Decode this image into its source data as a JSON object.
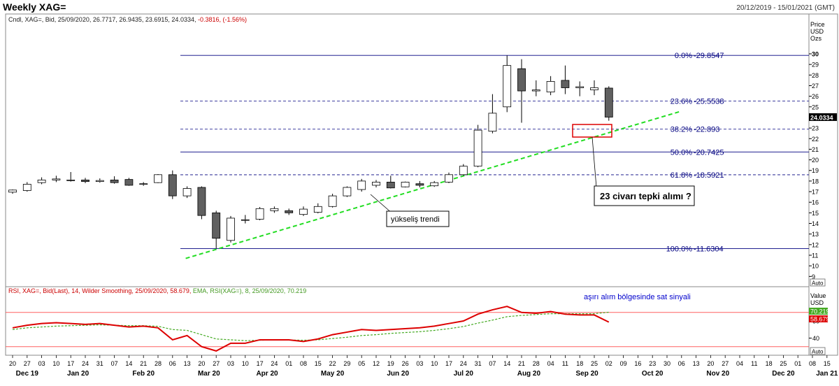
{
  "header": {
    "title": "Weekly XAG=",
    "date_range": "20/12/2019 - 15/01/2021 (GMT)"
  },
  "price_panel": {
    "info_line": "Cndl, XAG=, Bid, 25/09/2020, 26.7717, 26.9435, 23.6915, 24.0334, ",
    "info_change": "-0.3816, (-1.56%)",
    "axis_title": [
      "Price",
      "USD",
      "Ozs"
    ],
    "last_price": "24.0334",
    "auto_label": "Auto"
  },
  "rsi_panel": {
    "info_rsi": "RSI, XAG=, Bid(Last),  14,  Wilder Smoothing,  25/09/2020, 58.679, ",
    "info_ema": "EMA, RSI(XAG=),  8,  25/09/2020, 70.219",
    "axis_title": [
      "Value",
      "USD"
    ],
    "rsi_label": "58.679",
    "ema_label": "70.219",
    "auto_label": "Auto",
    "annotation": "aşırı alım bölgesinde sat sinyali"
  },
  "annotations": {
    "trend_label": "yükseliş trendi",
    "reaction_label": "23 civarı tepki alımı ?"
  },
  "colors": {
    "fib_line": "#000080",
    "fib_text": "#000080",
    "trend": "#22dd22",
    "rsi": "#dd0000",
    "ema": "#44aa22",
    "bear_body": "#606060",
    "box": "#dd0000",
    "rsi_band": "#ff6060",
    "last_tag": "#000000"
  },
  "chart_data": {
    "type": "candlestick",
    "weeks": [
      "20",
      "27",
      "03",
      "10",
      "17",
      "24",
      "31",
      "07",
      "14",
      "21",
      "28",
      "06",
      "13",
      "20",
      "27",
      "03",
      "10",
      "17",
      "24",
      "01",
      "08",
      "15",
      "22",
      "29",
      "05",
      "12",
      "19",
      "26",
      "03",
      "10",
      "17",
      "24",
      "31",
      "07",
      "14",
      "21",
      "28",
      "04",
      "11",
      "18",
      "25",
      "02",
      "09",
      "16",
      "23",
      "30",
      "06",
      "13",
      "20",
      "27",
      "04",
      "11",
      "18",
      "25",
      "01",
      "08",
      "15"
    ],
    "months": [
      {
        "label": "Dec 19",
        "week_index": 1
      },
      {
        "label": "Jan 20",
        "week_index": 4.5
      },
      {
        "label": "Feb 20",
        "week_index": 9
      },
      {
        "label": "Mar 20",
        "week_index": 13.5
      },
      {
        "label": "Apr 20",
        "week_index": 17.5
      },
      {
        "label": "May 20",
        "week_index": 22
      },
      {
        "label": "Jun 20",
        "week_index": 26.5
      },
      {
        "label": "Jul 20",
        "week_index": 31
      },
      {
        "label": "Aug 20",
        "week_index": 35.5
      },
      {
        "label": "Sep 20",
        "week_index": 39.5
      },
      {
        "label": "Oct 20",
        "week_index": 44
      },
      {
        "label": "Nov 20",
        "week_index": 48.5
      },
      {
        "label": "Dec 20",
        "week_index": 53
      },
      {
        "label": "Jan 21",
        "week_index": 56
      }
    ],
    "candles": [
      {
        "o": 16.95,
        "h": 17.2,
        "l": 16.8,
        "c": 17.15
      },
      {
        "o": 17.1,
        "h": 17.9,
        "l": 17.0,
        "c": 17.7
      },
      {
        "o": 17.85,
        "h": 18.35,
        "l": 17.7,
        "c": 18.1
      },
      {
        "o": 18.1,
        "h": 18.5,
        "l": 17.9,
        "c": 18.2
      },
      {
        "o": 18.05,
        "h": 18.85,
        "l": 17.95,
        "c": 18.1
      },
      {
        "o": 18.1,
        "h": 18.3,
        "l": 17.8,
        "c": 17.95
      },
      {
        "o": 17.95,
        "h": 18.25,
        "l": 17.85,
        "c": 18.05
      },
      {
        "o": 18.1,
        "h": 18.45,
        "l": 17.75,
        "c": 17.85
      },
      {
        "o": 18.15,
        "h": 18.3,
        "l": 17.55,
        "c": 17.6
      },
      {
        "o": 17.7,
        "h": 17.9,
        "l": 17.55,
        "c": 17.75
      },
      {
        "o": 17.85,
        "h": 18.65,
        "l": 17.8,
        "c": 18.6
      },
      {
        "o": 18.6,
        "h": 19.0,
        "l": 16.3,
        "c": 16.6
      },
      {
        "o": 16.6,
        "h": 17.5,
        "l": 16.4,
        "c": 17.3
      },
      {
        "o": 17.4,
        "h": 17.5,
        "l": 14.4,
        "c": 14.75
      },
      {
        "o": 15.0,
        "h": 15.2,
        "l": 11.63,
        "c": 12.6
      },
      {
        "o": 12.4,
        "h": 14.7,
        "l": 12.2,
        "c": 14.5
      },
      {
        "o": 14.3,
        "h": 14.8,
        "l": 14.0,
        "c": 14.35
      },
      {
        "o": 14.4,
        "h": 15.55,
        "l": 14.3,
        "c": 15.4
      },
      {
        "o": 15.2,
        "h": 15.6,
        "l": 15.0,
        "c": 15.4
      },
      {
        "o": 15.2,
        "h": 15.4,
        "l": 14.8,
        "c": 15.0
      },
      {
        "o": 14.85,
        "h": 15.6,
        "l": 14.7,
        "c": 15.35
      },
      {
        "o": 15.05,
        "h": 15.9,
        "l": 14.95,
        "c": 15.6
      },
      {
        "o": 15.6,
        "h": 16.8,
        "l": 15.5,
        "c": 16.6
      },
      {
        "o": 16.6,
        "h": 17.5,
        "l": 16.5,
        "c": 17.4
      },
      {
        "o": 17.2,
        "h": 18.2,
        "l": 17.0,
        "c": 18.0
      },
      {
        "o": 17.6,
        "h": 18.1,
        "l": 17.4,
        "c": 17.9
      },
      {
        "o": 17.9,
        "h": 18.5,
        "l": 17.3,
        "c": 17.35
      },
      {
        "o": 17.45,
        "h": 17.95,
        "l": 17.4,
        "c": 17.9
      },
      {
        "o": 17.75,
        "h": 18.0,
        "l": 17.4,
        "c": 17.6
      },
      {
        "o": 17.55,
        "h": 18.0,
        "l": 17.45,
        "c": 17.85
      },
      {
        "o": 17.9,
        "h": 18.8,
        "l": 17.8,
        "c": 18.6
      },
      {
        "o": 18.6,
        "h": 19.6,
        "l": 18.5,
        "c": 19.4
      },
      {
        "o": 19.4,
        "h": 23.3,
        "l": 19.3,
        "c": 22.8
      },
      {
        "o": 22.7,
        "h": 26.2,
        "l": 22.5,
        "c": 24.4
      },
      {
        "o": 25.0,
        "h": 29.85,
        "l": 24.5,
        "c": 28.9
      },
      {
        "o": 28.6,
        "h": 29.5,
        "l": 23.5,
        "c": 26.5
      },
      {
        "o": 26.5,
        "h": 27.5,
        "l": 26.0,
        "c": 26.6
      },
      {
        "o": 26.4,
        "h": 27.9,
        "l": 26.1,
        "c": 27.4
      },
      {
        "o": 27.5,
        "h": 28.9,
        "l": 26.2,
        "c": 26.8
      },
      {
        "o": 26.8,
        "h": 27.4,
        "l": 26.0,
        "c": 26.9
      },
      {
        "o": 26.6,
        "h": 27.5,
        "l": 26.1,
        "c": 26.8
      },
      {
        "o": 26.77,
        "h": 26.94,
        "l": 23.69,
        "c": 24.03
      }
    ],
    "fibonacci": [
      {
        "pct": "0.0%",
        "value": "29.8547",
        "level": 29.8547,
        "style": "solid"
      },
      {
        "pct": "23.6%",
        "value": "25.5538",
        "level": 25.5538,
        "style": "dashed"
      },
      {
        "pct": "38.2%",
        "value": "22.893",
        "level": 22.893,
        "style": "dashed"
      },
      {
        "pct": "50.0%",
        "value": "20.7425",
        "level": 20.7425,
        "style": "solid"
      },
      {
        "pct": "61.8%",
        "value": "18.5921",
        "level": 18.5921,
        "style": "dashed"
      },
      {
        "pct": "100.0%",
        "value": "11.6304",
        "level": 11.6304,
        "style": "solid"
      }
    ],
    "trendline": {
      "from": {
        "week": 12,
        "price": 10.7
      },
      "to": {
        "week": 46,
        "price": 24.6
      }
    },
    "price_axis": {
      "min": 8.6,
      "max": 31.2,
      "ticks": [
        9,
        10,
        11,
        12,
        13,
        14,
        15,
        16,
        17,
        18,
        19,
        20,
        21,
        22,
        23,
        24,
        25,
        26,
        27,
        28,
        29,
        30
      ]
    },
    "rsi_axis": {
      "min": 20,
      "max": 100,
      "ticks": [
        40,
        60
      ]
    },
    "rsi_bands": [
      70,
      30
    ],
    "rsi": [
      52,
      55,
      57,
      58,
      57,
      56,
      57,
      55,
      53,
      54,
      52,
      38,
      43,
      30,
      25,
      34,
      34,
      38,
      38,
      38,
      36,
      39,
      44,
      47,
      50,
      49,
      50,
      51,
      52,
      54,
      57,
      60,
      68,
      73,
      77,
      70,
      69,
      71,
      68,
      67,
      67,
      58.679
    ],
    "ema": [
      50,
      52,
      53,
      54,
      54.5,
      55,
      55.5,
      55,
      54.5,
      54.5,
      53.8,
      50,
      49,
      44,
      39,
      38,
      37,
      37.5,
      37.8,
      37.8,
      37.5,
      38,
      39.5,
      41,
      43,
      44,
      45.5,
      46.5,
      47.5,
      49,
      51,
      53.5,
      57.5,
      61,
      65,
      66.5,
      67.5,
      68.5,
      68.5,
      68.5,
      68.5,
      70.219
    ]
  }
}
